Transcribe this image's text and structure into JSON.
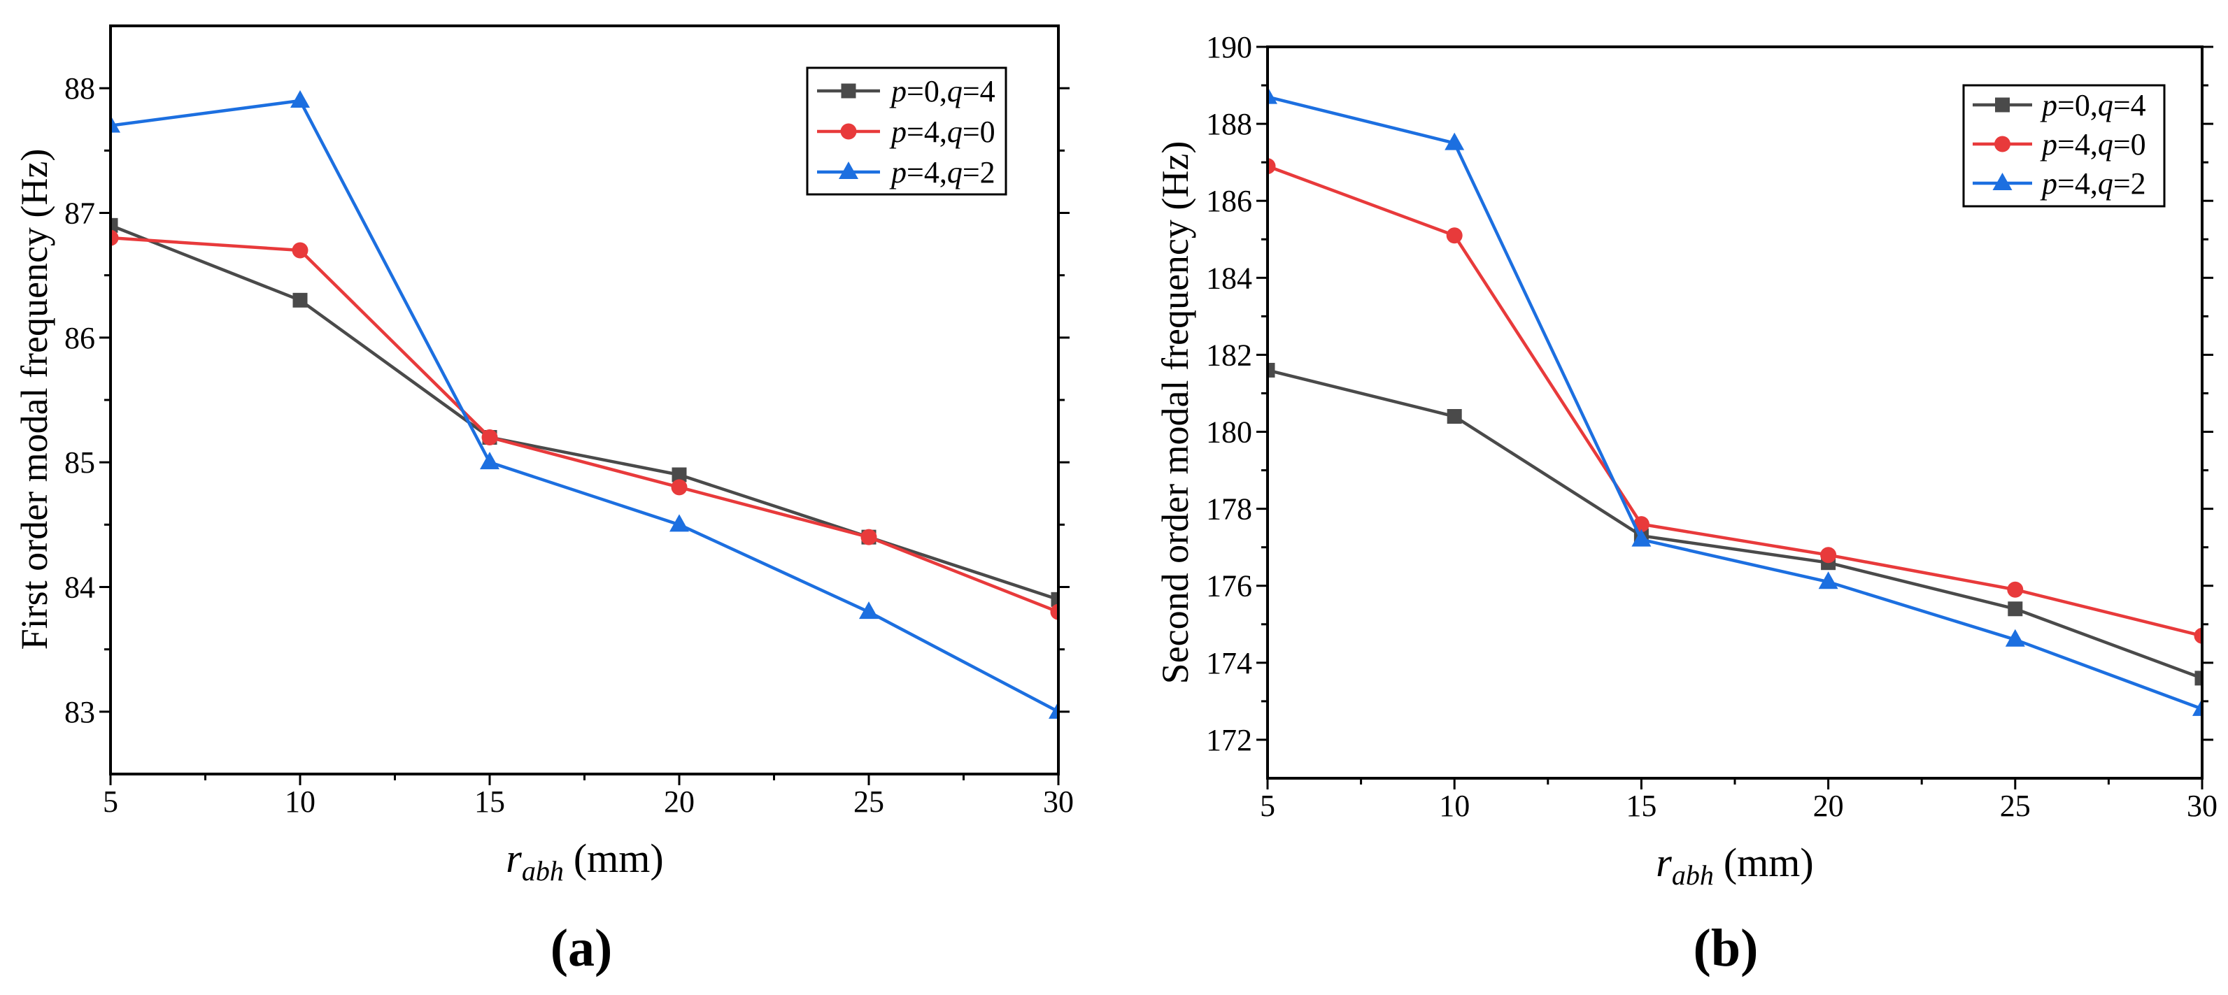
{
  "chart_data": [
    {
      "type": "line",
      "panel_label": "(a)",
      "xlabel": {
        "var": "r",
        "sub": "abh",
        "unit": "(mm)"
      },
      "ylabel": "First order modal frequency (Hz)",
      "x": [
        5,
        10,
        15,
        20,
        25,
        30
      ],
      "xlim": [
        5,
        30
      ],
      "ylim": [
        82.5,
        88.5
      ],
      "xticks": [
        5,
        10,
        15,
        20,
        25,
        30
      ],
      "yticks": [
        83,
        84,
        85,
        86,
        87,
        88
      ],
      "grid": false,
      "legend": "top-right",
      "series": [
        {
          "name": "p=0,q=4",
          "color": "#4a4a4a",
          "marker": "square",
          "values": [
            86.9,
            86.3,
            85.2,
            84.9,
            84.4,
            83.9
          ]
        },
        {
          "name": "p=4,q=0",
          "color": "#e83a3b",
          "marker": "circle",
          "values": [
            86.8,
            86.7,
            85.2,
            84.8,
            84.4,
            83.8
          ]
        },
        {
          "name": "p=4,q=2",
          "color": "#1c6fe0",
          "marker": "triangle",
          "values": [
            87.7,
            87.9,
            85.0,
            84.5,
            83.8,
            83.0
          ]
        }
      ]
    },
    {
      "type": "line",
      "panel_label": "(b)",
      "xlabel": {
        "var": "r",
        "sub": "abh",
        "unit": "(mm)"
      },
      "ylabel": "Second order modal frequency (Hz)",
      "x": [
        5,
        10,
        15,
        20,
        25,
        30
      ],
      "xlim": [
        5,
        30
      ],
      "ylim": [
        171,
        190
      ],
      "xticks": [
        5,
        10,
        15,
        20,
        25,
        30
      ],
      "yticks": [
        172,
        174,
        176,
        178,
        180,
        182,
        184,
        186,
        188,
        190
      ],
      "grid": false,
      "legend": "top-right",
      "series": [
        {
          "name": "p=0,q=4",
          "color": "#4a4a4a",
          "marker": "square",
          "values": [
            181.6,
            180.4,
            177.3,
            176.6,
            175.4,
            173.6
          ]
        },
        {
          "name": "p=4,q=0",
          "color": "#e83a3b",
          "marker": "circle",
          "values": [
            186.9,
            185.1,
            177.6,
            176.8,
            175.9,
            174.7
          ]
        },
        {
          "name": "p=4,q=2",
          "color": "#1c6fe0",
          "marker": "triangle",
          "values": [
            188.7,
            187.5,
            177.2,
            176.1,
            174.6,
            172.8
          ]
        }
      ]
    }
  ]
}
